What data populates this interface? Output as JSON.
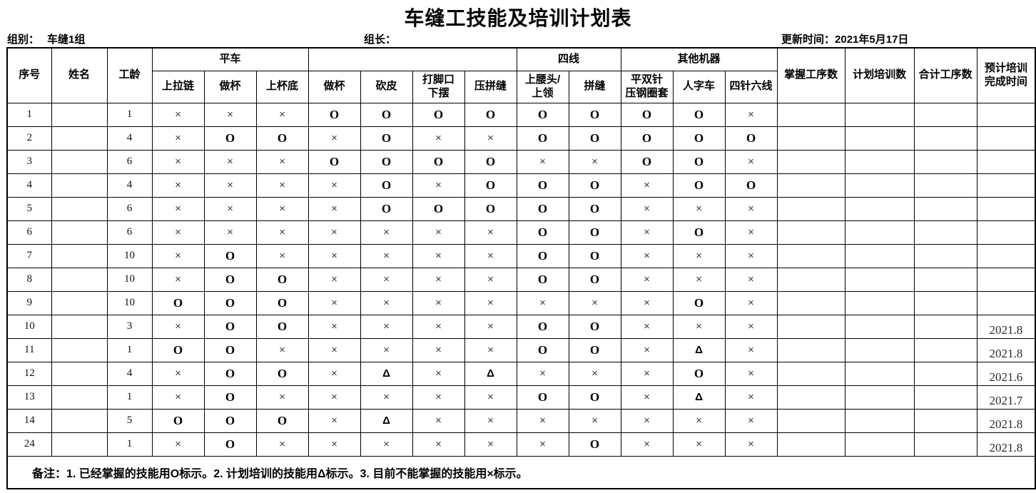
{
  "title": "车缝工技能及培训计划表",
  "info": {
    "group_label": "组别：",
    "group_value": "车缝1组",
    "leader_label": "组长：",
    "updated_label": "更新时间：",
    "updated_value": "2021年5月17日"
  },
  "table": {
    "head": {
      "serial": "序号",
      "name": "姓名",
      "years": "工龄",
      "groups": [
        {
          "label": "平车",
          "span": 3
        },
        {
          "label": "",
          "span": 4
        },
        {
          "label": "四线",
          "span": 2
        },
        {
          "label": "其他机器",
          "span": 3
        }
      ],
      "skills": [
        "上拉链",
        "做杯",
        "上杯底",
        "做杯",
        "砍皮",
        "打脚口\n下摆",
        "压拼缝",
        "上腰头/\n上领",
        "拼缝",
        "平双针\n压钢圈套",
        "人字车",
        "四针六线"
      ],
      "mastered": "掌握工序数",
      "planned": "计划培训数",
      "total": "合计工序数",
      "due": "预计培训\n完成时间"
    },
    "rows": [
      {
        "no": "1",
        "name": "",
        "years": "1",
        "skills": [
          "×",
          "×",
          "×",
          "O",
          "O",
          "O",
          "O",
          "O",
          "O",
          "O",
          "O",
          "×"
        ],
        "mastered": "",
        "planned": "",
        "total": "",
        "due": ""
      },
      {
        "no": "2",
        "name": "",
        "years": "4",
        "skills": [
          "×",
          "O",
          "O",
          "×",
          "O",
          "×",
          "×",
          "O",
          "O",
          "O",
          "O",
          "O"
        ],
        "mastered": "",
        "planned": "",
        "total": "",
        "due": ""
      },
      {
        "no": "3",
        "name": "",
        "years": "6",
        "skills": [
          "×",
          "×",
          "×",
          "O",
          "O",
          "O",
          "O",
          "×",
          "×",
          "O",
          "O",
          "×"
        ],
        "mastered": "",
        "planned": "",
        "total": "",
        "due": ""
      },
      {
        "no": "4",
        "name": "",
        "years": "4",
        "skills": [
          "×",
          "×",
          "×",
          "×",
          "O",
          "×",
          "O",
          "O",
          "O",
          "×",
          "O",
          "O"
        ],
        "mastered": "",
        "planned": "",
        "total": "",
        "due": ""
      },
      {
        "no": "5",
        "name": "",
        "years": "6",
        "skills": [
          "×",
          "×",
          "×",
          "×",
          "O",
          "O",
          "O",
          "O",
          "O",
          "×",
          "×",
          "×"
        ],
        "mastered": "",
        "planned": "",
        "total": "",
        "due": ""
      },
      {
        "no": "6",
        "name": "",
        "years": "6",
        "skills": [
          "×",
          "×",
          "×",
          "×",
          "×",
          "×",
          "×",
          "O",
          "O",
          "×",
          "O",
          "×"
        ],
        "mastered": "",
        "planned": "",
        "total": "",
        "due": ""
      },
      {
        "no": "7",
        "name": "",
        "years": "10",
        "skills": [
          "×",
          "O",
          "×",
          "×",
          "×",
          "×",
          "×",
          "O",
          "O",
          "×",
          "×",
          "×"
        ],
        "mastered": "",
        "planned": "",
        "total": "",
        "due": ""
      },
      {
        "no": "8",
        "name": "",
        "years": "10",
        "skills": [
          "×",
          "O",
          "O",
          "×",
          "×",
          "×",
          "×",
          "O",
          "O",
          "×",
          "×",
          "×"
        ],
        "mastered": "",
        "planned": "",
        "total": "",
        "due": ""
      },
      {
        "no": "9",
        "name": "",
        "years": "10",
        "skills": [
          "O",
          "O",
          "O",
          "×",
          "×",
          "×",
          "×",
          "×",
          "×",
          "×",
          "O",
          "×"
        ],
        "mastered": "",
        "planned": "",
        "total": "",
        "due": ""
      },
      {
        "no": "10",
        "name": "",
        "years": "3",
        "skills": [
          "×",
          "O",
          "O",
          "×",
          "×",
          "×",
          "×",
          "O",
          "O",
          "×",
          "×",
          "×"
        ],
        "mastered": "",
        "planned": "",
        "total": "",
        "due": "2021.8"
      },
      {
        "no": "11",
        "name": "",
        "years": "1",
        "skills": [
          "O",
          "O",
          "×",
          "×",
          "×",
          "×",
          "×",
          "O",
          "O",
          "×",
          "Δ",
          "×"
        ],
        "mastered": "",
        "planned": "",
        "total": "",
        "due": "2021.8"
      },
      {
        "no": "12",
        "name": "",
        "years": "4",
        "skills": [
          "×",
          "O",
          "O",
          "×",
          "Δ",
          "×",
          "Δ",
          "×",
          "×",
          "×",
          "O",
          "×"
        ],
        "mastered": "",
        "planned": "",
        "total": "",
        "due": "2021.6"
      },
      {
        "no": "13",
        "name": "",
        "years": "1",
        "skills": [
          "×",
          "O",
          "×",
          "×",
          "×",
          "×",
          "×",
          "O",
          "O",
          "×",
          "Δ",
          "×"
        ],
        "mastered": "",
        "planned": "",
        "total": "",
        "due": "2021.7"
      },
      {
        "no": "14",
        "name": "",
        "years": "5",
        "skills": [
          "O",
          "O",
          "O",
          "×",
          "Δ",
          "×",
          "×",
          "×",
          "×",
          "×",
          "×",
          "×"
        ],
        "mastered": "",
        "planned": "",
        "total": "",
        "due": "2021.8"
      },
      {
        "no": "24",
        "name": "",
        "years": "1",
        "skills": [
          "×",
          "O",
          "×",
          "×",
          "×",
          "×",
          "×",
          "×",
          "O",
          "×",
          "×",
          "×"
        ],
        "mastered": "",
        "planned": "",
        "total": "",
        "due": "2021.8"
      }
    ],
    "note": "备注：1. 已经掌握的技能用O标示。2. 计划培训的技能用Δ标示。3. 目前不能掌握的技能用×标示。"
  }
}
